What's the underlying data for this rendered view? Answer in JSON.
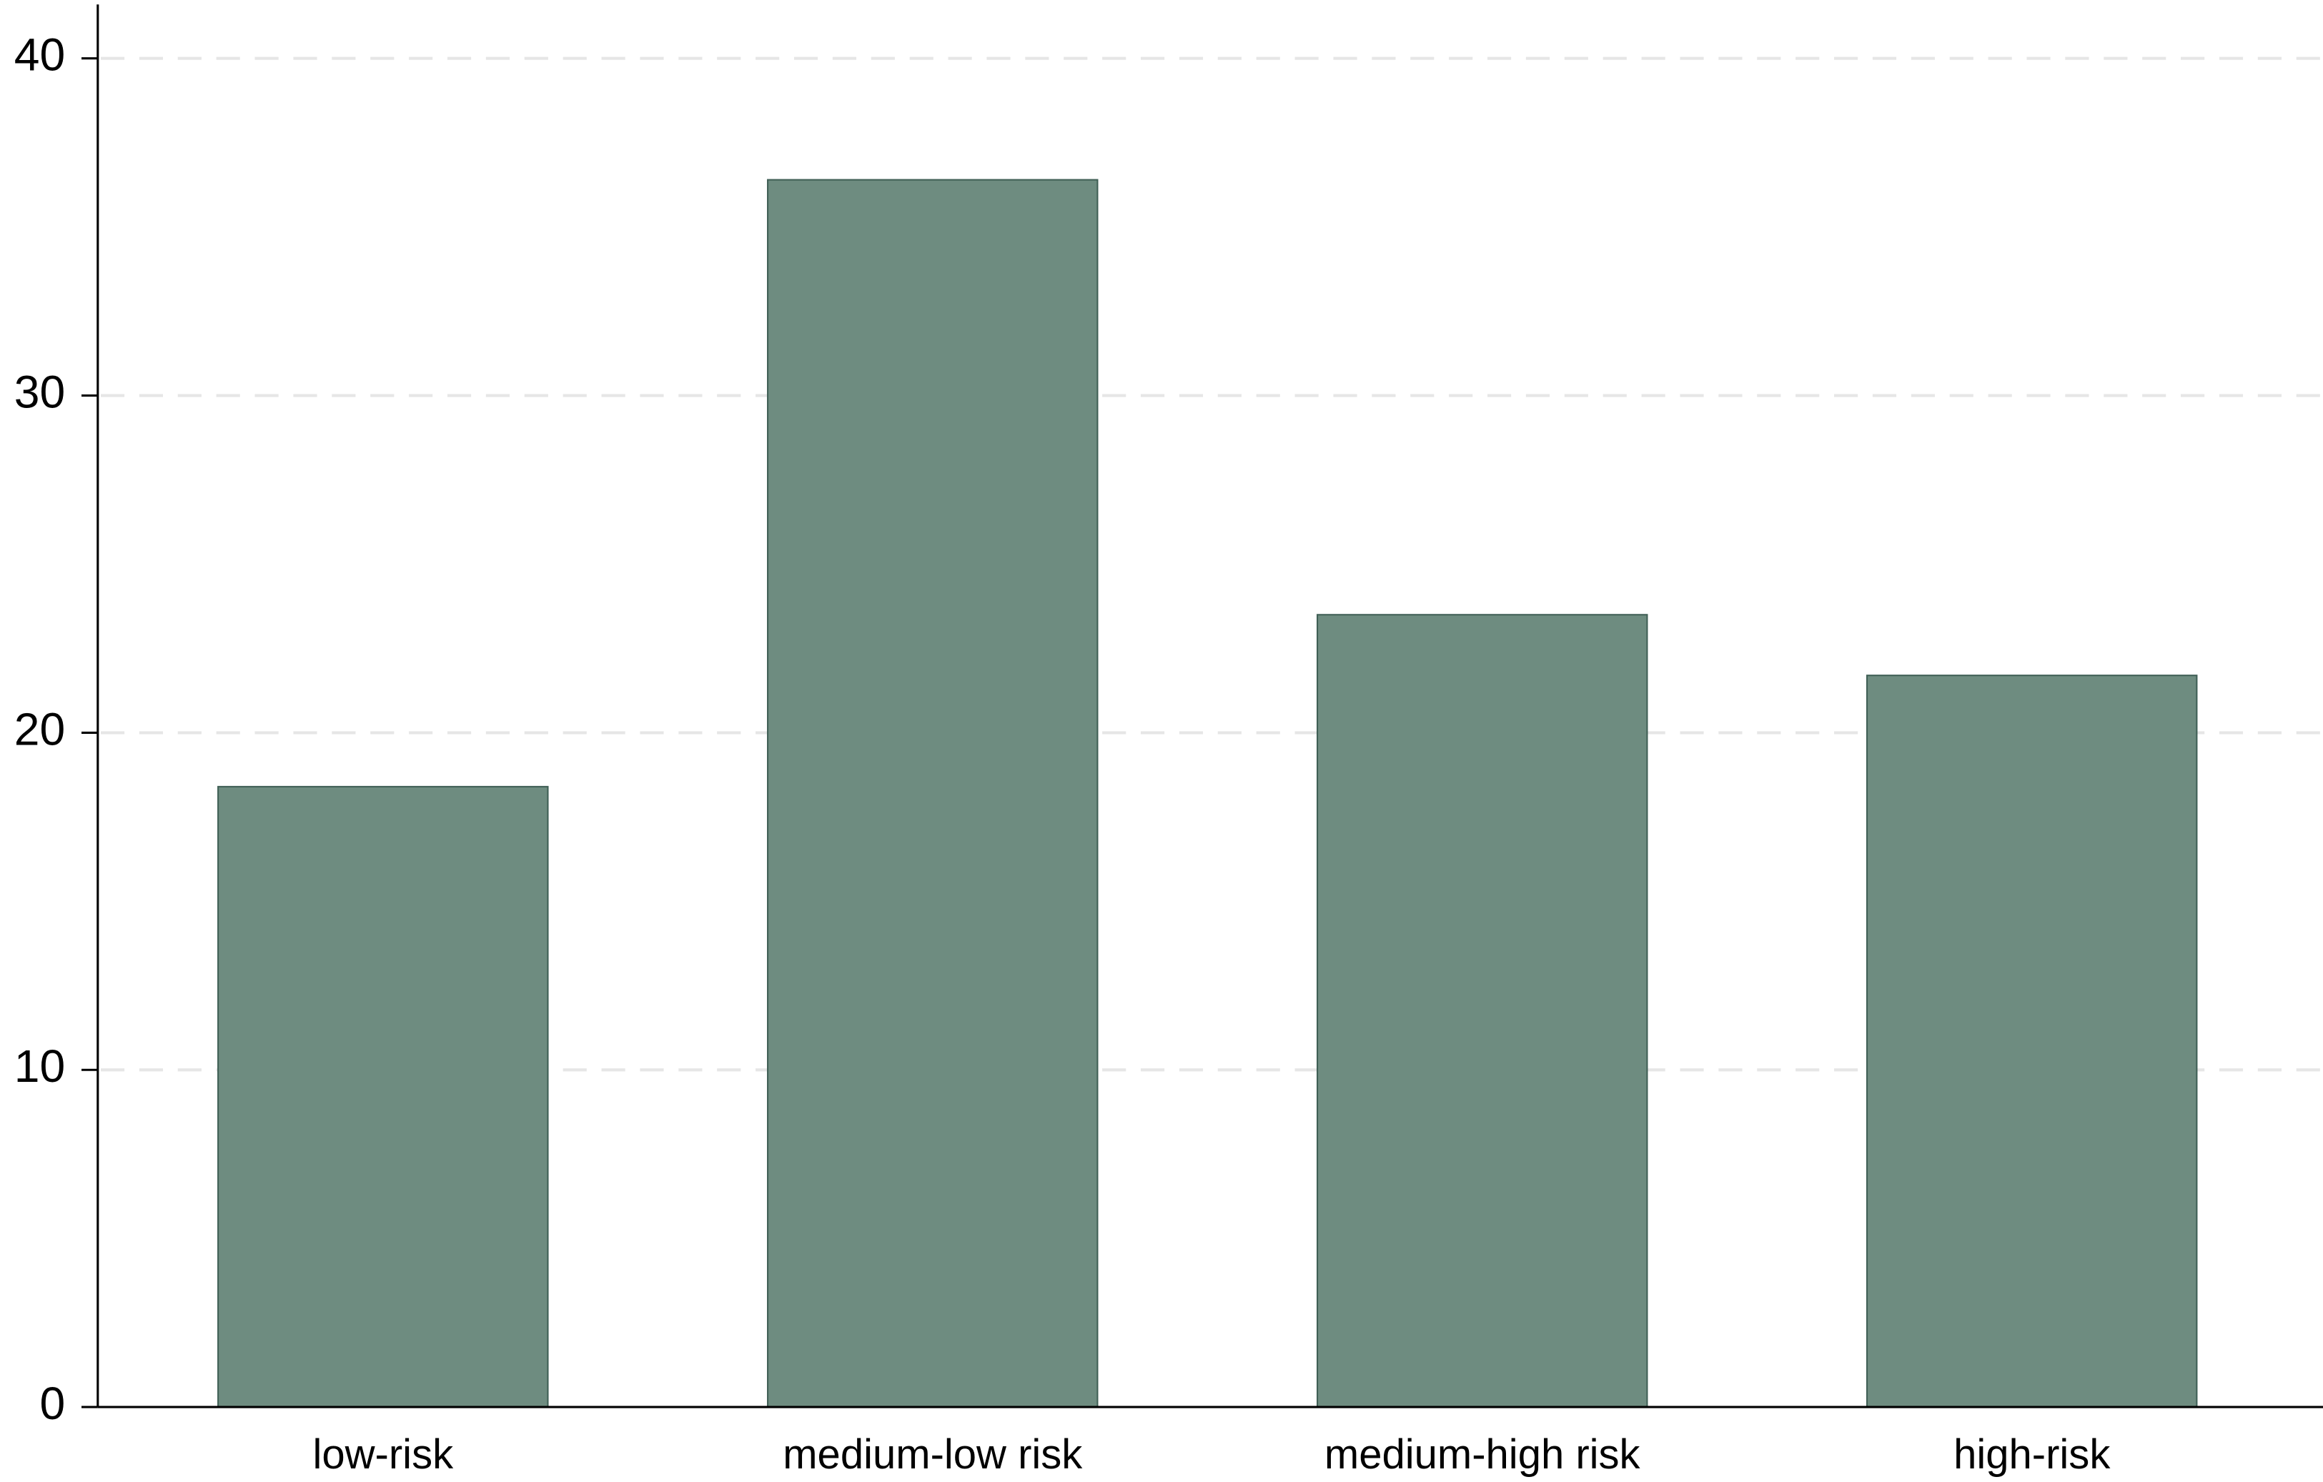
{
  "chart_data": {
    "type": "bar",
    "categories": [
      "low-risk",
      "medium-low risk",
      "medium-high risk",
      "high-risk"
    ],
    "values": [
      18.4,
      36.4,
      23.5,
      21.7
    ],
    "color": "#6e8c80",
    "ylim": [
      0,
      41.6
    ],
    "yticks": [
      0,
      10,
      20,
      30,
      40
    ],
    "grid": true
  }
}
